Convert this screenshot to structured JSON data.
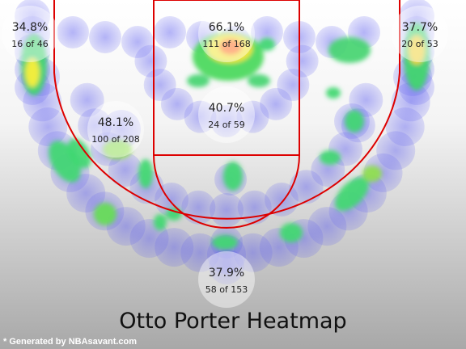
{
  "chart_data": {
    "type": "heatmap",
    "title": "Otto Porter Heatmap",
    "zones": [
      {
        "zone": "left-corner-three",
        "pct": "34.8%",
        "makes_attempts": "16 of 46"
      },
      {
        "zone": "restricted-area",
        "pct": "66.1%",
        "makes_attempts": "111 of 168"
      },
      {
        "zone": "right-corner-three",
        "pct": "37.7%",
        "makes_attempts": "20 of 53"
      },
      {
        "zone": "left-midrange",
        "pct": "48.1%",
        "makes_attempts": "100 of 208"
      },
      {
        "zone": "paint-non-ra",
        "pct": "40.7%",
        "makes_attempts": "24 of 59"
      },
      {
        "zone": "above-break-three",
        "pct": "37.9%",
        "makes_attempts": "58 of 153"
      }
    ]
  },
  "footer": "* Generated by NBAsavant.com",
  "colors": {
    "court_lines": "#dd0000",
    "bubble": "#ffffff"
  }
}
